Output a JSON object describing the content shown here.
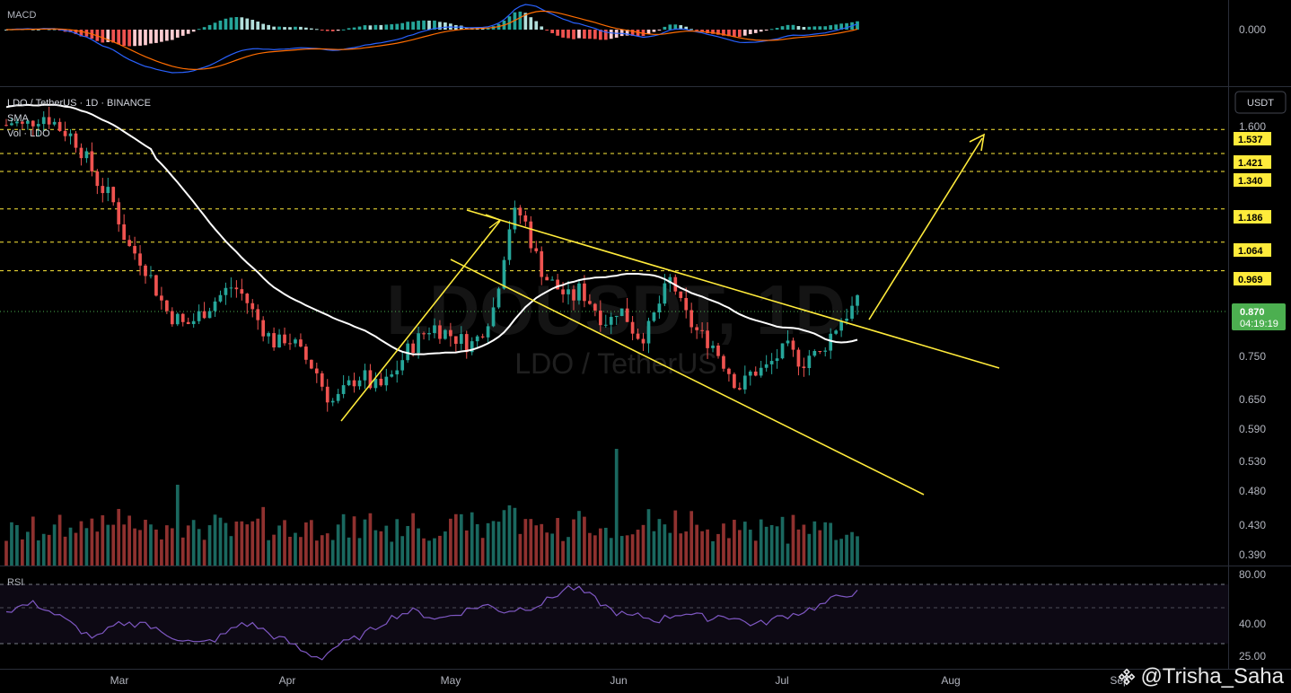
{
  "macd": {
    "label": "MACD",
    "zero_label": "0.000"
  },
  "main": {
    "title": "LDO / TetherUS · 1D · BINANCE",
    "sma_label": "SMA",
    "vol_label": "Vol · LDO",
    "currency_button": "USDT",
    "watermark_ticker": "LDOUSDT, 1D",
    "watermark_pair": "LDO / TetherUS",
    "price_tag": "0.870",
    "countdown": "04:19:19",
    "price_ticks": [
      "1.600",
      "0.750",
      "0.650",
      "0.590",
      "0.530",
      "0.480",
      "0.430",
      "0.390"
    ],
    "level_tags": [
      "1.537",
      "1.421",
      "1.340",
      "1.186",
      "1.064",
      "0.969"
    ]
  },
  "rsi": {
    "label": "RSI",
    "ticks": [
      "80.00",
      "40.00",
      "25.00"
    ]
  },
  "x_axis": {
    "months": [
      "Mar",
      "Apr",
      "May",
      "Jun",
      "Jul",
      "Aug",
      "Sep"
    ]
  },
  "credit": "@Trisha_Saha",
  "colors": {
    "up": "#26a69a",
    "down": "#ef5350",
    "sma": "#ffffff",
    "trend": "#ffeb3b",
    "rsi": "#7e57c2",
    "macd": "#2962ff",
    "signal": "#ff6d00",
    "tag_green": "#4caf50"
  },
  "chart_data": {
    "type": "candlestick",
    "symbol": "LDO / TetherUS",
    "interval": "1D",
    "exchange": "BINANCE",
    "x_labels": [
      "Mar",
      "Apr",
      "May",
      "Jun",
      "Jul",
      "Aug",
      "Sep"
    ],
    "y_scale": "log",
    "ylim": [
      0.37,
      1.75
    ],
    "last_price": 0.87,
    "horizontal_levels": [
      1.537,
      1.421,
      1.34,
      1.186,
      1.064,
      0.969
    ],
    "close_path": [
      1.56,
      1.58,
      1.55,
      1.57,
      1.6,
      1.61,
      1.58,
      1.54,
      1.52,
      1.48,
      1.42,
      1.35,
      1.28,
      1.25,
      1.2,
      1.1,
      1.04,
      1.02,
      0.98,
      0.93,
      0.88,
      0.84,
      0.83,
      0.81,
      0.82,
      0.84,
      0.86,
      0.88,
      0.9,
      0.92,
      0.91,
      0.88,
      0.84,
      0.81,
      0.78,
      0.76,
      0.78,
      0.77,
      0.74,
      0.72,
      0.7,
      0.66,
      0.63,
      0.64,
      0.66,
      0.68,
      0.69,
      0.67,
      0.66,
      0.67,
      0.69,
      0.72,
      0.75,
      0.77,
      0.79,
      0.81,
      0.8,
      0.79,
      0.78,
      0.77,
      0.76,
      0.78,
      0.82,
      0.86,
      0.98,
      1.12,
      1.18,
      1.14,
      1.05,
      0.98,
      0.94,
      0.92,
      0.9,
      0.88,
      0.91,
      0.89,
      0.86,
      0.83,
      0.82,
      0.86,
      0.84,
      0.8,
      0.78,
      0.8,
      0.85,
      0.9,
      0.95,
      0.87,
      0.83,
      0.8,
      0.78,
      0.77,
      0.74,
      0.71,
      0.68,
      0.66,
      0.69,
      0.7,
      0.7,
      0.72,
      0.74,
      0.75,
      0.73,
      0.72,
      0.74,
      0.73,
      0.77,
      0.8,
      0.83,
      0.85,
      0.87
    ],
    "rsi_path": [
      58,
      60,
      62,
      63,
      61,
      57,
      54,
      50,
      46,
      42,
      40,
      44,
      48,
      50,
      49,
      52,
      47,
      44,
      42,
      40,
      38,
      36,
      37,
      39,
      42,
      46,
      50,
      49,
      47,
      43,
      40,
      38,
      34,
      30,
      28,
      27,
      33,
      36,
      38,
      41,
      44,
      48,
      52,
      55,
      57,
      58,
      56,
      54,
      53,
      55,
      57,
      59,
      61,
      62,
      60,
      58,
      59,
      60,
      61,
      63,
      66,
      70,
      74,
      73,
      70,
      66,
      62,
      58,
      56,
      54,
      55,
      53,
      52,
      54,
      56,
      57,
      55,
      54,
      53,
      56,
      54,
      52,
      50,
      49,
      51,
      53,
      55,
      56,
      58,
      60,
      62,
      65,
      68,
      70,
      70
    ],
    "rsi_ylim": [
      20,
      85
    ],
    "rsi_bands": [
      70,
      50,
      30
    ],
    "series": [
      {
        "name": "SMA"
      },
      {
        "name": "Vol · LDO"
      }
    ]
  }
}
